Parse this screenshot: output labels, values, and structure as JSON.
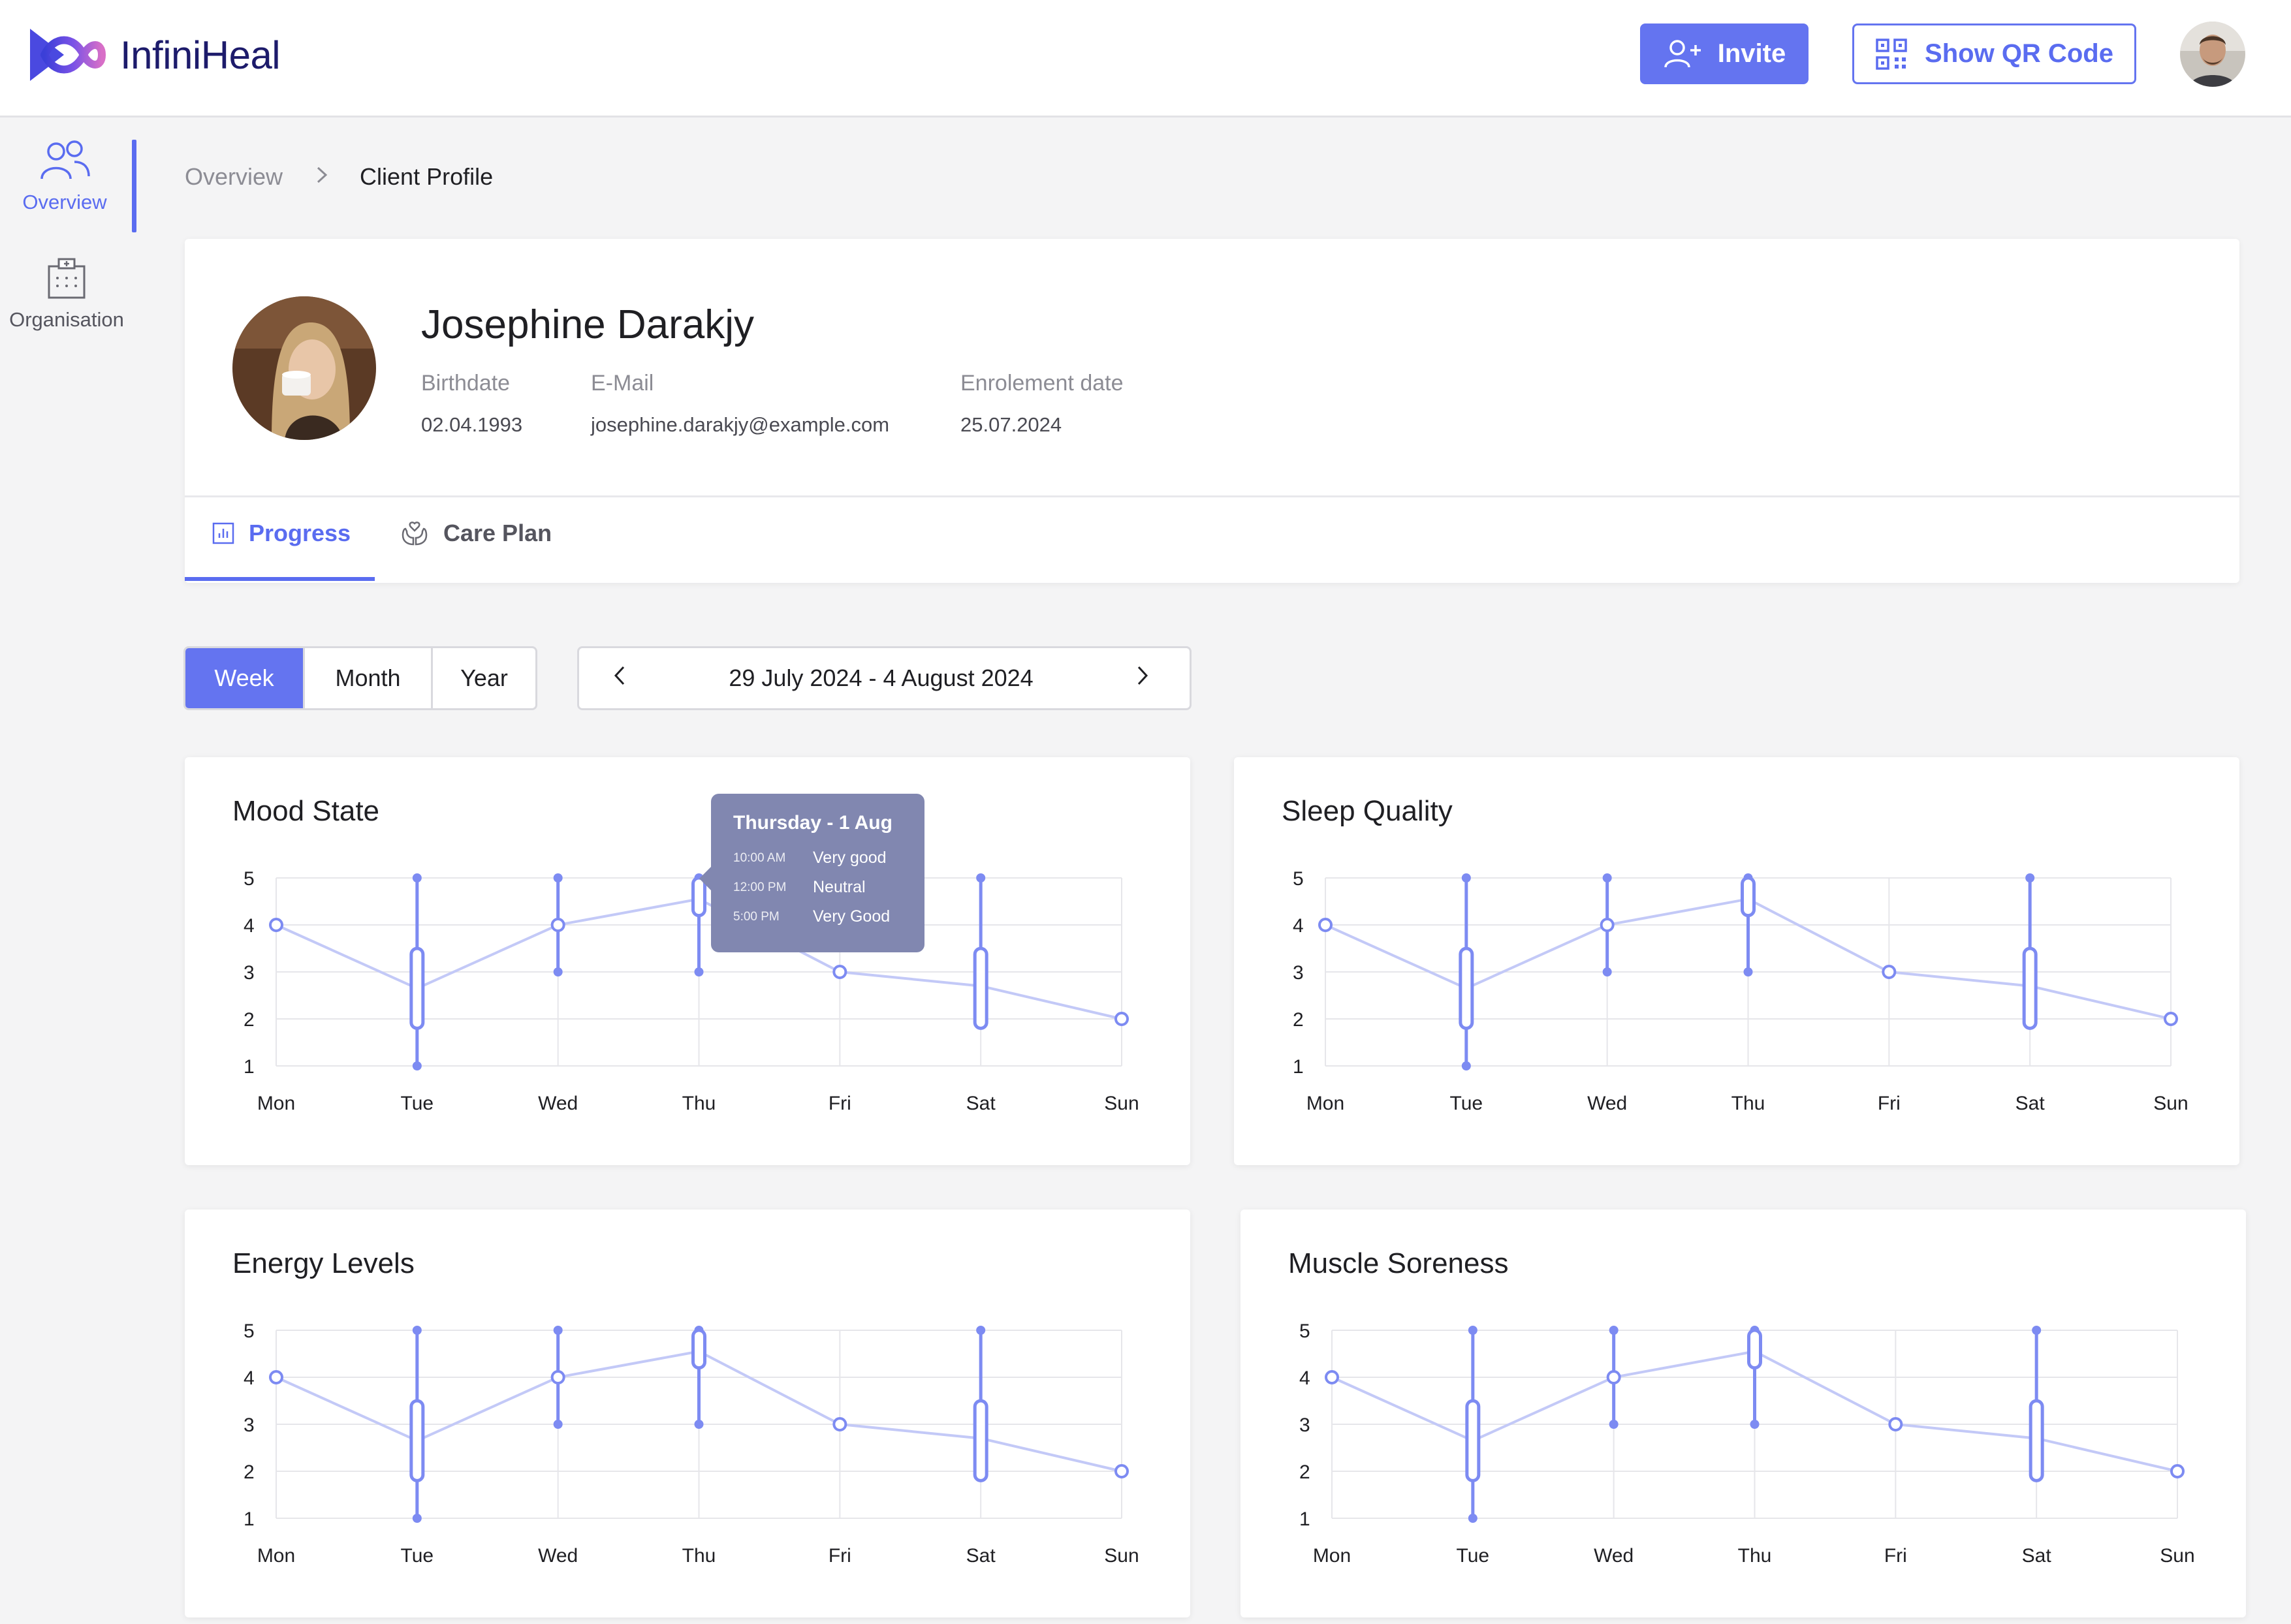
{
  "app": {
    "name": "InfiniHeal"
  },
  "header": {
    "invite_label": "Invite",
    "qr_label": "Show QR Code"
  },
  "sidebar": {
    "items": [
      {
        "label": "Overview",
        "icon": "users-icon",
        "active": true
      },
      {
        "label": "Organisation",
        "icon": "hospital-icon",
        "active": false
      }
    ]
  },
  "breadcrumb": {
    "parent": "Overview",
    "current": "Client Profile"
  },
  "profile": {
    "name": "Josephine Darakjy",
    "fields": [
      {
        "label": "Birthdate",
        "value": "02.04.1993"
      },
      {
        "label": "E-Mail",
        "value": "josephine.darakjy@example.com"
      },
      {
        "label": "Enrolement date",
        "value": "25.07.2024"
      }
    ]
  },
  "tabs": [
    {
      "label": "Progress",
      "icon": "bar-chart-icon",
      "active": true
    },
    {
      "label": "Care Plan",
      "icon": "hands-care-icon",
      "active": false
    }
  ],
  "range": {
    "options": [
      "Week",
      "Month",
      "Year"
    ],
    "selected": "Week",
    "date_label": "29 July 2024 - 4 August 2024"
  },
  "tooltip": {
    "title": "Thursday - 1 Aug",
    "rows": [
      {
        "time": "10:00 AM",
        "value": "Very good"
      },
      {
        "time": "12:00 PM",
        "value": "Neutral"
      },
      {
        "time": "5:00 PM",
        "value": "Very Good"
      }
    ]
  },
  "colors": {
    "accent": "#6474f0",
    "line": "#c3c9f7",
    "marker": "#7d8bf2",
    "tooltip_bg": "#8187b0"
  },
  "chart_data": [
    {
      "type": "line",
      "title": "Mood State",
      "categories": [
        "Mon",
        "Tue",
        "Wed",
        "Thu",
        "Fri",
        "Sat",
        "Sun"
      ],
      "values": [
        4,
        2.65,
        4,
        4.55,
        3,
        2.7,
        2
      ],
      "ranges": [
        null,
        [
          1,
          5
        ],
        [
          3,
          5
        ],
        [
          3,
          5
        ],
        null,
        [
          2,
          5
        ],
        null
      ],
      "boxes": [
        null,
        [
          1.8,
          3.5
        ],
        null,
        [
          4.2,
          5
        ],
        null,
        [
          1.8,
          3.5
        ],
        null
      ],
      "ylim": [
        1,
        5
      ],
      "yticks": [
        1,
        2,
        3,
        4,
        5
      ]
    },
    {
      "type": "line",
      "title": "Sleep Quality",
      "categories": [
        "Mon",
        "Tue",
        "Wed",
        "Thu",
        "Fri",
        "Sat",
        "Sun"
      ],
      "values": [
        4,
        2.65,
        4,
        4.55,
        3,
        2.7,
        2
      ],
      "ranges": [
        null,
        [
          1,
          5
        ],
        [
          3,
          5
        ],
        [
          3,
          5
        ],
        null,
        [
          2,
          5
        ],
        null
      ],
      "boxes": [
        null,
        [
          1.8,
          3.5
        ],
        null,
        [
          4.2,
          5
        ],
        null,
        [
          1.8,
          3.5
        ],
        null
      ],
      "ylim": [
        1,
        5
      ],
      "yticks": [
        1,
        2,
        3,
        4,
        5
      ]
    },
    {
      "type": "line",
      "title": "Energy Levels",
      "categories": [
        "Mon",
        "Tue",
        "Wed",
        "Thu",
        "Fri",
        "Sat",
        "Sun"
      ],
      "values": [
        4,
        2.65,
        4,
        4.55,
        3,
        2.7,
        2
      ],
      "ranges": [
        null,
        [
          1,
          5
        ],
        [
          3,
          5
        ],
        [
          3,
          5
        ],
        null,
        [
          2,
          5
        ],
        null
      ],
      "boxes": [
        null,
        [
          1.8,
          3.5
        ],
        null,
        [
          4.2,
          5
        ],
        null,
        [
          1.8,
          3.5
        ],
        null
      ],
      "ylim": [
        1,
        5
      ],
      "yticks": [
        1,
        2,
        3,
        4,
        5
      ]
    },
    {
      "type": "line",
      "title": "Muscle Soreness",
      "categories": [
        "Mon",
        "Tue",
        "Wed",
        "Thu",
        "Fri",
        "Sat",
        "Sun"
      ],
      "values": [
        4,
        2.65,
        4,
        4.55,
        3,
        2.7,
        2
      ],
      "ranges": [
        null,
        [
          1,
          5
        ],
        [
          3,
          5
        ],
        [
          3,
          5
        ],
        null,
        [
          2,
          5
        ],
        null
      ],
      "boxes": [
        null,
        [
          1.8,
          3.5
        ],
        null,
        [
          4.2,
          5
        ],
        null,
        [
          1.8,
          3.5
        ],
        null
      ],
      "ylim": [
        1,
        5
      ],
      "yticks": [
        1,
        2,
        3,
        4,
        5
      ]
    }
  ]
}
